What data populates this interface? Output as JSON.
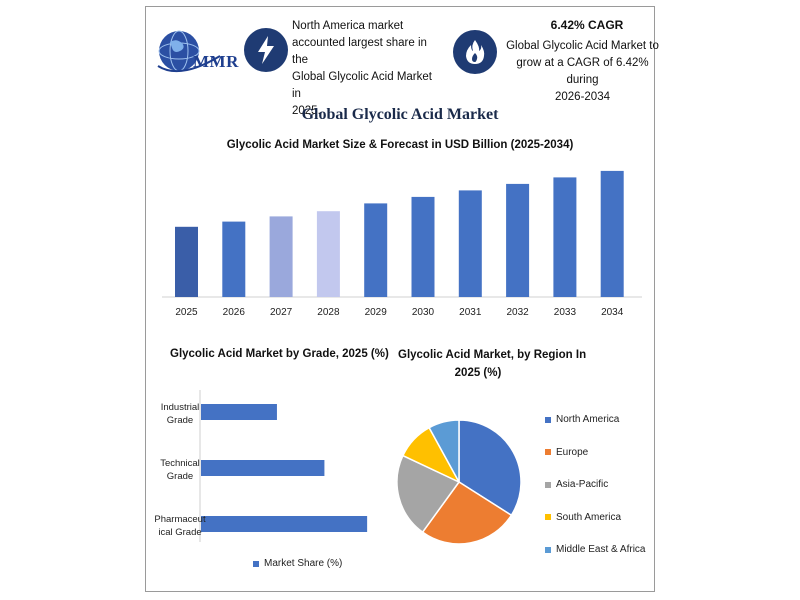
{
  "header": {
    "logo_text": "MMR",
    "info_left": {
      "icon": "lightning-icon",
      "lines": [
        "North America market",
        "accounted largest share in the",
        "Global Glycolic Acid Market in",
        "2025."
      ]
    },
    "info_right": {
      "icon": "flame-icon",
      "heading": "6.42% CAGR",
      "lines": [
        "Global Glycolic Acid Market to",
        "grow at a CAGR of 6.42% during",
        "2026-2034"
      ]
    },
    "main_title": "Global Glycolic Acid Market"
  },
  "chart_data": [
    {
      "type": "bar",
      "title": "Glycolic Acid Market Size & Forecast in USD Billion (2025-2034)",
      "categories": [
        "2025",
        "2026",
        "2027",
        "2028",
        "2029",
        "2030",
        "2031",
        "2032",
        "2033",
        "2034"
      ],
      "values": [
        54,
        58,
        62,
        66,
        72,
        77,
        82,
        87,
        92,
        97
      ],
      "colors": [
        "#3a5ea8",
        "#4472c4",
        "#9aa8dc",
        "#c2c8ee",
        "#4472c4",
        "#4472c4",
        "#4472c4",
        "#4472c4",
        "#4472c4",
        "#4472c4"
      ],
      "ylim": [
        0,
        100
      ],
      "grid": false
    },
    {
      "type": "bar",
      "orientation": "horizontal",
      "title": "Glycolic Acid Market by Grade, 2025 (%)",
      "categories": [
        [
          "Industrial",
          "Grade"
        ],
        [
          "Technical",
          "Grade"
        ],
        [
          "Pharmaceut",
          "ical Grade"
        ]
      ],
      "values": [
        32,
        52,
        70
      ],
      "xlim": [
        0,
        75
      ],
      "series": [
        {
          "name": "Market Share (%)",
          "color": "#4472c4"
        }
      ]
    },
    {
      "type": "pie",
      "title": [
        "Glycolic Acid Market, by Region In",
        "2025 (%)"
      ],
      "labels": [
        "North America",
        "Europe",
        "Asia-Pacific",
        "South America",
        "Middle East & Africa"
      ],
      "values": [
        34,
        26,
        22,
        10,
        8
      ],
      "colors": [
        "#4472c4",
        "#ed7d31",
        "#a5a5a5",
        "#ffc000",
        "#5b9bd5"
      ]
    }
  ]
}
